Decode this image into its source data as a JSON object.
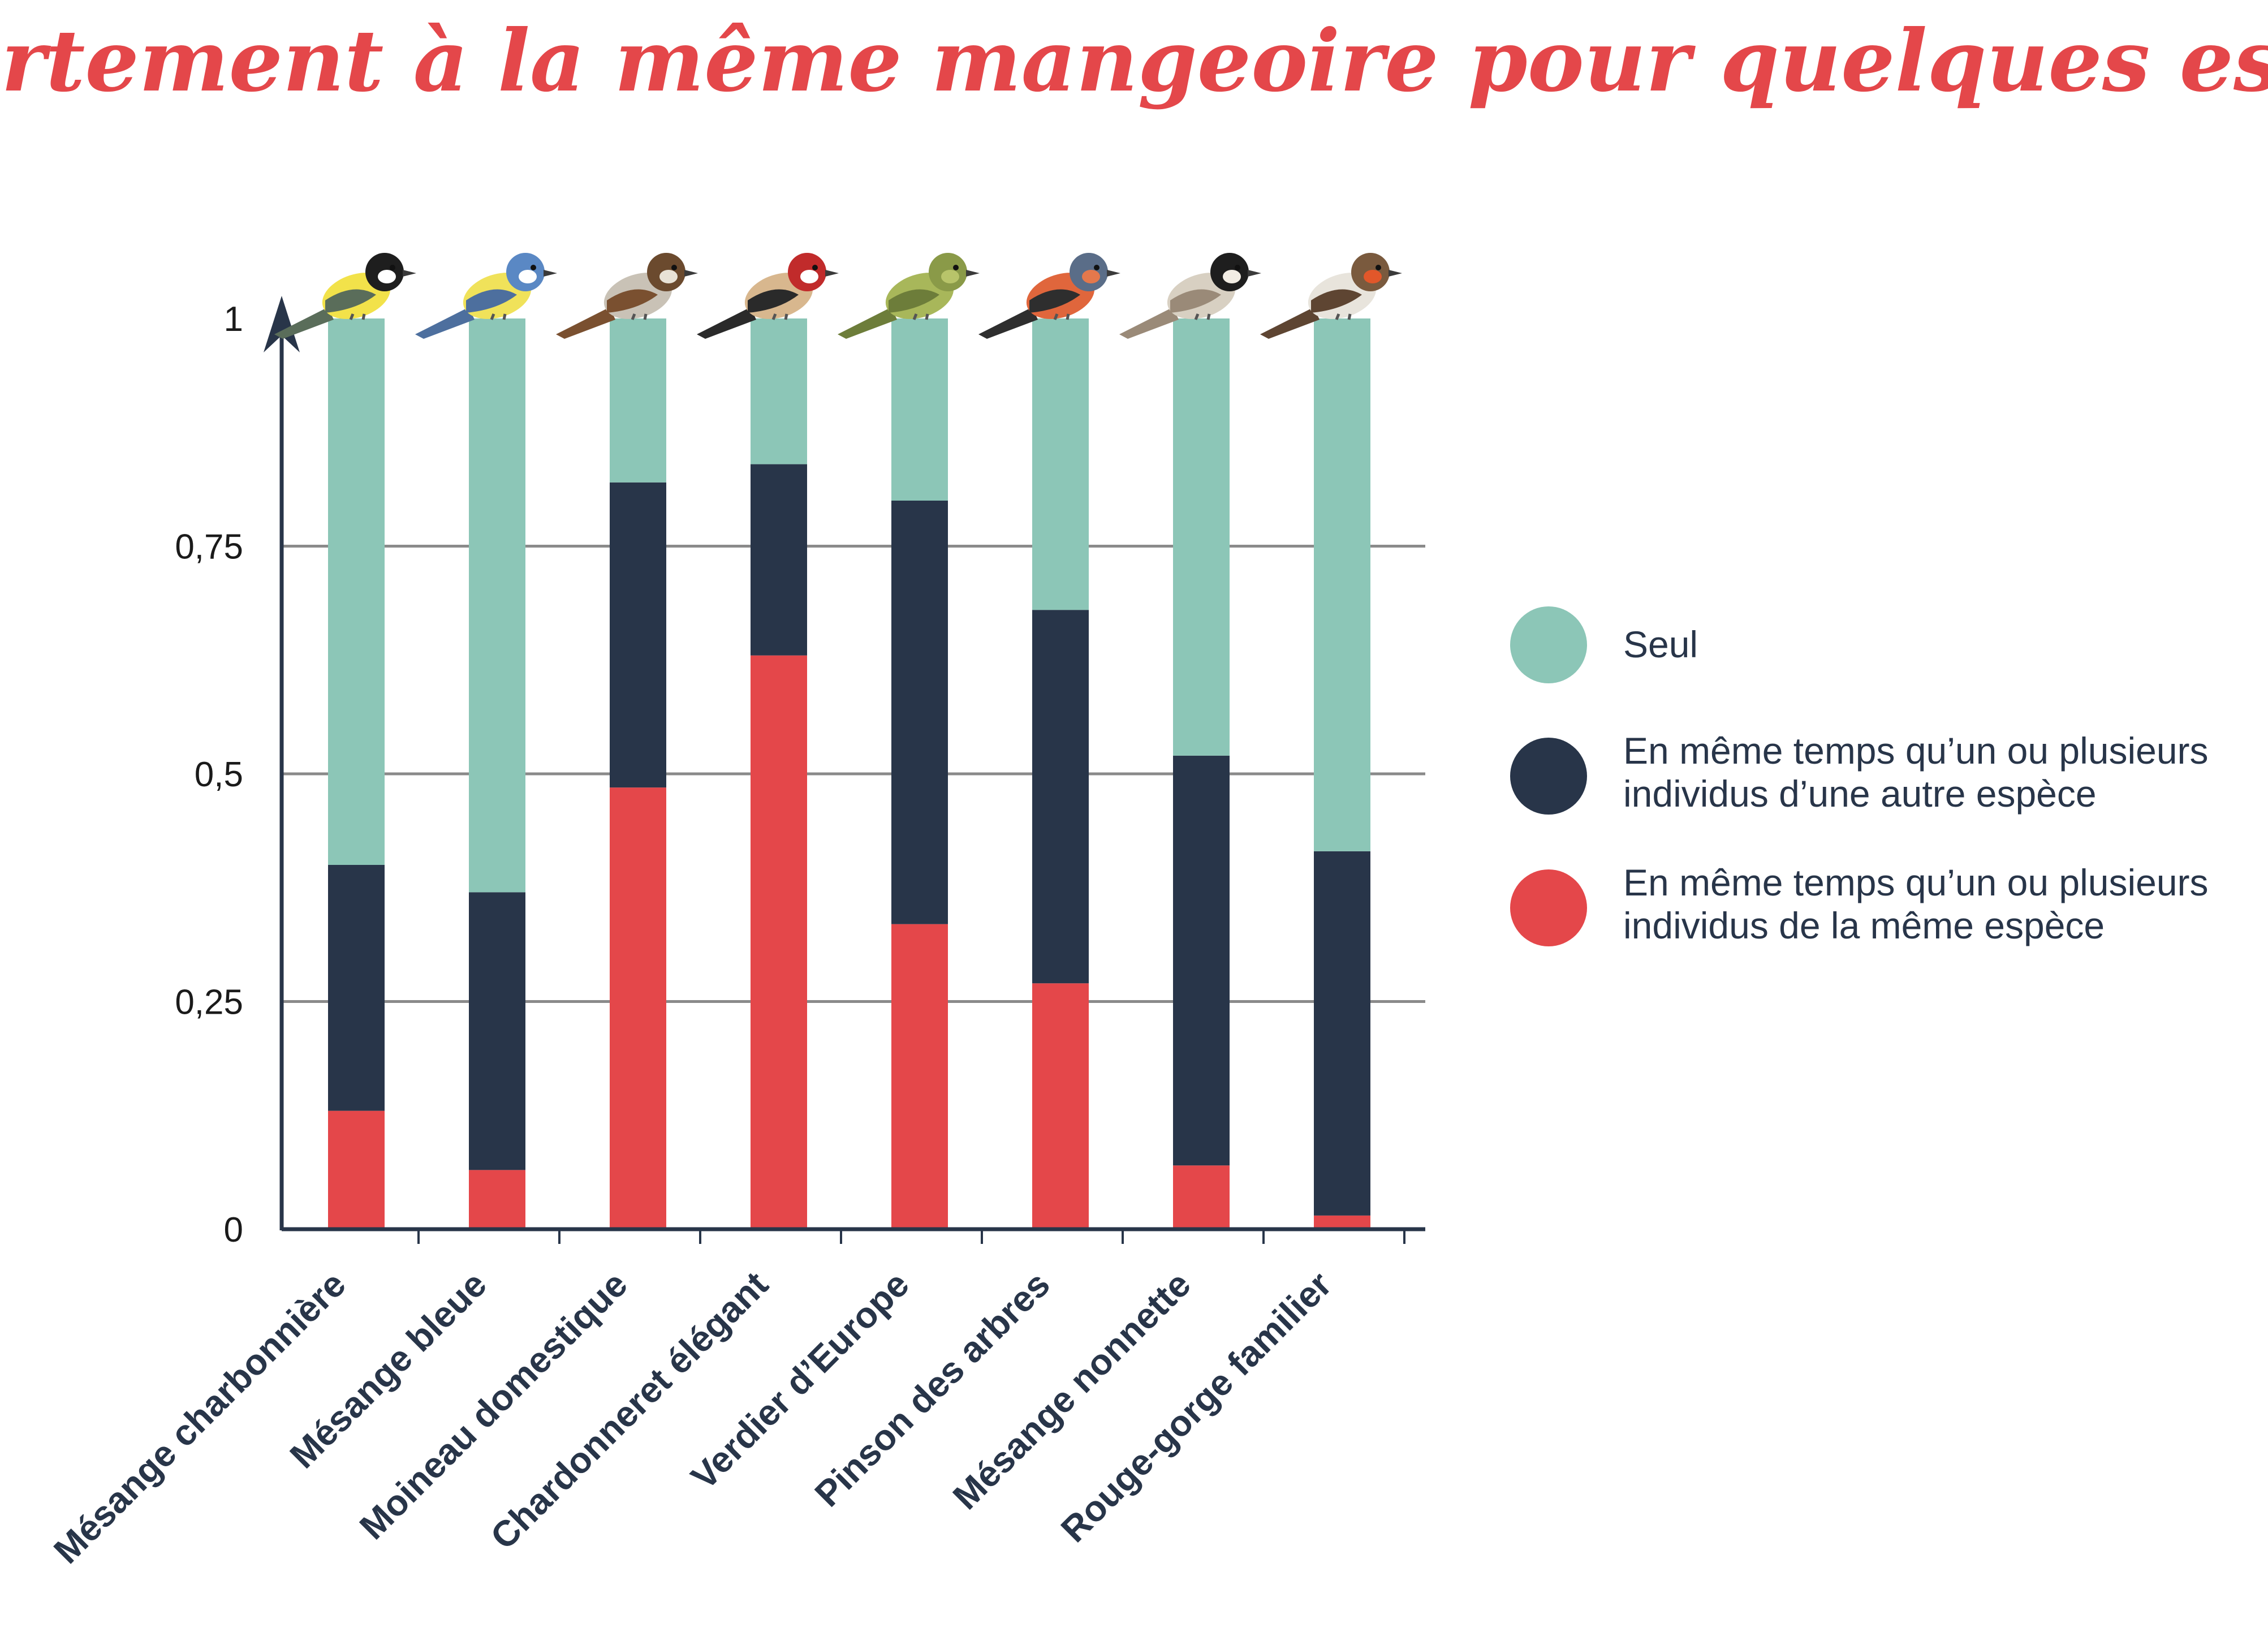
{
  "chart_data": {
    "type": "bar",
    "stacked": true,
    "title": "Comportement à la même mangeoire pour quelques espèces",
    "categories": [
      "Mésange charbonnière",
      "Mésange bleue",
      "Moineau domestique",
      "Chardonneret élégant",
      "Verdier d’Europe",
      "Pinson des arbres",
      "Mésange nonnette",
      "Rouge-gorge familier"
    ],
    "series": [
      {
        "name": "En même temps qu’un ou plusieurs individus de la même espèce",
        "color": "#e4474a",
        "values": [
          0.13,
          0.065,
          0.485,
          0.63,
          0.335,
          0.27,
          0.07,
          0.015
        ]
      },
      {
        "name": "En même temps qu’un ou plusieurs individus d’une autre espèce",
        "color": "#283549",
        "values": [
          0.27,
          0.305,
          0.335,
          0.21,
          0.465,
          0.41,
          0.45,
          0.4
        ]
      },
      {
        "name": "Seul",
        "color": "#8cc6b7",
        "values": [
          0.6,
          0.63,
          0.18,
          0.16,
          0.2,
          0.32,
          0.48,
          0.585
        ]
      }
    ],
    "legend_order": [
      2,
      1,
      0
    ],
    "legend_lines": [
      [
        "Seul"
      ],
      [
        "En même temps qu’un ou plusieurs",
        "individus d’une autre espèce"
      ],
      [
        "En même temps qu’un ou plusieurs",
        "individus de la même espèce"
      ]
    ],
    "y_ticks": [
      {
        "value": 0,
        "label": "0"
      },
      {
        "value": 0.25,
        "label": "0,25"
      },
      {
        "value": 0.5,
        "label": "0,5"
      },
      {
        "value": 0.75,
        "label": "0,75"
      },
      {
        "value": 1,
        "label": "1"
      }
    ],
    "ylim": [
      0,
      1
    ],
    "grid": true,
    "legend_position": "right",
    "colors": {
      "title": "#e4474a",
      "axis": "#283549",
      "grid": "#8a8a8a",
      "labels": "#283549"
    },
    "bird_icons": [
      {
        "name": "great-tit-icon",
        "body": "#f2e24a",
        "head": "#1e1e1e",
        "wing": "#5a6d5a",
        "cheek": "#ffffff"
      },
      {
        "name": "blue-tit-icon",
        "body": "#f0e25a",
        "head": "#5a88c4",
        "wing": "#4d6f9e",
        "cheek": "#ffffff"
      },
      {
        "name": "house-sparrow-icon",
        "body": "#c9c2b6",
        "head": "#6b4a2e",
        "wing": "#7a5030",
        "cheek": "#e8e2d6"
      },
      {
        "name": "goldfinch-icon",
        "body": "#d8b78e",
        "head": "#c12b2b",
        "wing": "#2a2a2a",
        "cheek": "#ffffff"
      },
      {
        "name": "greenfinch-icon",
        "body": "#a8b75a",
        "head": "#8a9a48",
        "wing": "#6d7d3a",
        "cheek": "#b8c46a"
      },
      {
        "name": "chaffinch-icon",
        "body": "#e0663c",
        "head": "#5a6d88",
        "wing": "#2e2e2e",
        "cheek": "#e4784c"
      },
      {
        "name": "marsh-tit-icon",
        "body": "#d8d0c2",
        "head": "#1e1e1e",
        "wing": "#9a8a78",
        "cheek": "#f2ede4"
      },
      {
        "name": "robin-icon",
        "body": "#e8e4dc",
        "head": "#7a5a3e",
        "wing": "#5e4532",
        "cheek": "#e2572a"
      }
    ]
  }
}
